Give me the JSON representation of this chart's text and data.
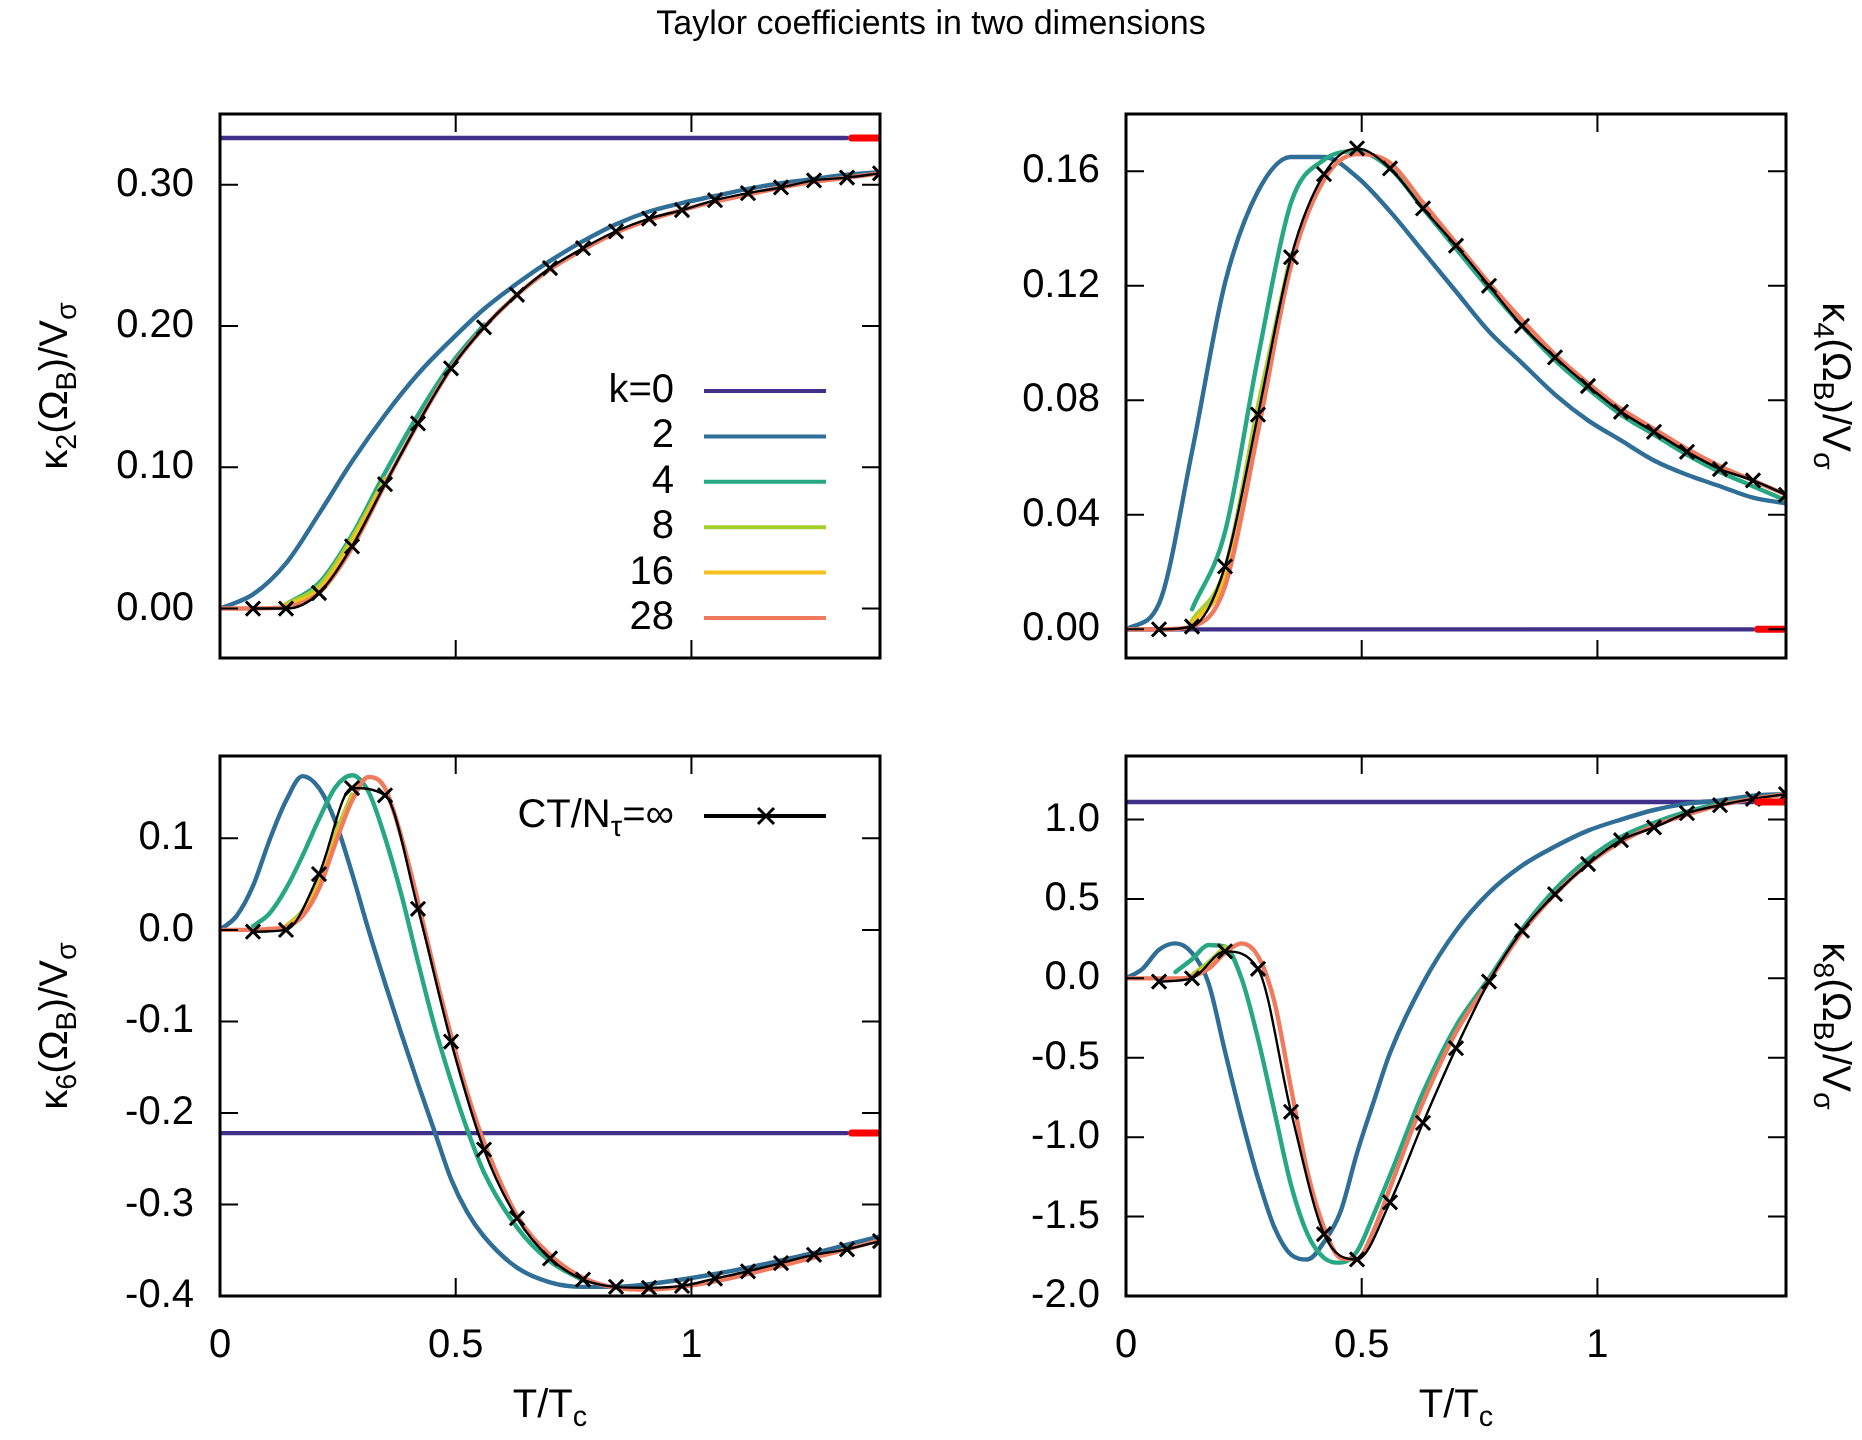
{
  "chart_data": [
    {
      "type": "line",
      "title": "Taylor coefficients in two dimensions",
      "ylabel": "κ$_{2}$(Ω$_{B}$)/V$_{σ}$",
      "legend": "bottom right",
      "tick_labels": "y",
      "xlim": [
        0,
        1.4
      ],
      "xticks": [
        0,
        0.5,
        1
      ],
      "ylim": [
        -0.035,
        0.35
      ],
      "yticks": [
        {
          "value": 0,
          "label": "0.00"
        },
        {
          "value": 0.1,
          "label": "0.10"
        },
        {
          "value": 0.2,
          "label": "0.20"
        },
        {
          "value": 0.3,
          "label": "0.30"
        }
      ],
      "x": [
        0,
        0.07,
        0.14,
        0.21,
        0.28,
        0.35,
        0.42,
        0.49,
        0.56,
        0.63,
        0.7,
        0.77,
        0.84,
        0.91,
        0.98,
        1.05,
        1.12,
        1.19,
        1.26,
        1.33,
        1.4
      ],
      "series": [
        {
          "name": "k=0",
          "color": "#40308a",
          "values": [
            0.333,
            0.333,
            0.333,
            0.333,
            0.333,
            0.333,
            0.333,
            0.333,
            0.333,
            0.333,
            0.333,
            0.333,
            0.333,
            0.333,
            0.333,
            0.333,
            0.333,
            0.333,
            0.333,
            0.333,
            null
          ]
        },
        {
          "name": "2",
          "color": "#2f6e96",
          "values": [
            0,
            0.01,
            0.032,
            0.067,
            0.104,
            0.137,
            0.166,
            0.19,
            0.212,
            0.23,
            0.246,
            0.26,
            0.272,
            0.281,
            0.287,
            0.292,
            0.297,
            0.301,
            0.304,
            0.307,
            0.309
          ]
        },
        {
          "name": "4",
          "color": "#26a882",
          "values": [
            null,
            null,
            0.003,
            0.018,
            0.052,
            0.096,
            0.137,
            0.173,
            0.201,
            null,
            null,
            null,
            null,
            null,
            null,
            null,
            null,
            null,
            null,
            null,
            null
          ]
        },
        {
          "name": "8",
          "color": "#a5cf2c",
          "values": [
            null,
            null,
            0.003,
            0.016,
            0.05,
            0.092,
            null,
            null,
            null,
            null,
            null,
            null,
            null,
            null,
            null,
            null,
            null,
            null,
            null,
            null,
            null
          ]
        },
        {
          "name": "16",
          "color": "#f7c11d",
          "values": [
            null,
            null,
            0.002,
            0.013,
            0.047,
            0.09,
            null,
            null,
            null,
            null,
            null,
            null,
            null,
            null,
            null,
            null,
            null,
            null,
            null,
            null,
            null
          ]
        },
        {
          "name": "28",
          "color": "#ef7a5e",
          "values": [
            0,
            0,
            0.001,
            0.011,
            0.043,
            0.088,
            0.131,
            0.17,
            0.199,
            0.222,
            0.24,
            0.254,
            0.266,
            0.275,
            0.282,
            0.288,
            0.293,
            0.298,
            0.302,
            0.305,
            0.308
          ]
        },
        {
          "color": "#000000",
          "marker": "cross",
          "x": [
            0.07,
            0.14,
            0.21,
            0.28,
            0.35,
            0.42,
            0.49,
            0.56,
            0.63,
            0.7,
            0.77,
            0.84,
            0.91,
            0.98,
            1.05,
            1.12,
            1.19,
            1.26,
            1.33,
            1.4
          ],
          "values": [
            0.0,
            0.0,
            0.011,
            0.044,
            0.088,
            0.131,
            0.17,
            0.199,
            0.222,
            0.241,
            0.255,
            0.267,
            0.276,
            0.282,
            0.289,
            0.294,
            0.298,
            0.303,
            0.305,
            0.308
          ]
        },
        {
          "color": "#ff0000",
          "x": [
            1.34,
            1.4
          ],
          "values": [
            0.333,
            0.333
          ]
        }
      ]
    },
    {
      "type": "line",
      "ylabel": "κ$_{4}$(Ω$_{B}$)/V$_{σ}$",
      "tick_labels": "y",
      "xlim": [
        0,
        1.4
      ],
      "xticks": [
        0,
        0.5,
        1
      ],
      "ylim": [
        -0.01,
        0.18
      ],
      "yticks": [
        {
          "value": 0,
          "label": "0.00"
        },
        {
          "value": 0.04,
          "label": "0.04"
        },
        {
          "value": 0.08,
          "label": "0.08"
        },
        {
          "value": 0.12,
          "label": "0.12"
        },
        {
          "value": 0.16,
          "label": "0.16"
        }
      ],
      "x": [
        0,
        0.07,
        0.14,
        0.21,
        0.28,
        0.35,
        0.42,
        0.49,
        0.56,
        0.63,
        0.7,
        0.77,
        0.84,
        0.91,
        0.98,
        1.05,
        1.12,
        1.19,
        1.26,
        1.33,
        1.4
      ],
      "series": [
        {
          "color": "#40308a",
          "values": [
            0,
            0,
            0,
            0,
            0,
            0,
            0,
            0,
            0,
            0,
            0,
            0,
            0,
            0,
            0,
            0,
            0,
            0,
            0,
            0,
            null
          ]
        },
        {
          "color": "#2f6e96",
          "values": [
            0,
            0.009,
            0.062,
            0.121,
            0.153,
            0.165,
            0.165,
            0.158,
            0.146,
            0.132,
            0.118,
            0.104,
            0.093,
            0.082,
            0.073,
            0.066,
            0.059,
            0.054,
            0.05,
            0.046,
            0.044
          ]
        },
        {
          "color": "#26a882",
          "values": [
            null,
            null,
            0.007,
            0.034,
            0.095,
            0.149,
            0.164,
            0.167,
            0.161,
            0.147,
            0.133,
            0.119,
            0.106,
            0.094,
            0.084,
            0.075,
            0.068,
            0.061,
            0.055,
            0.05,
            0.045
          ]
        },
        {
          "color": "#a5cf2c",
          "values": [
            null,
            null,
            0.003,
            0.021,
            0.078,
            0.131,
            null,
            null,
            null,
            null,
            null,
            null,
            null,
            null,
            null,
            null,
            null,
            null,
            null,
            null,
            null
          ]
        },
        {
          "color": "#f7c11d",
          "values": [
            null,
            null,
            0.002,
            0.018,
            0.074,
            0.129,
            null,
            null,
            null,
            null,
            null,
            null,
            null,
            null,
            null,
            null,
            null,
            null,
            null,
            null,
            null
          ]
        },
        {
          "color": "#ef7a5e",
          "values": [
            0,
            0,
            0.001,
            0.015,
            0.069,
            0.127,
            0.157,
            0.166,
            0.163,
            0.149,
            0.135,
            0.121,
            0.108,
            0.096,
            0.086,
            0.077,
            0.07,
            0.063,
            0.057,
            0.052,
            0.047
          ]
        },
        {
          "color": "#000000",
          "marker": "cross",
          "x": [
            0.07,
            0.14,
            0.21,
            0.28,
            0.35,
            0.42,
            0.49,
            0.56,
            0.63,
            0.7,
            0.77,
            0.84,
            0.91,
            0.98,
            1.05,
            1.12,
            1.19,
            1.26,
            1.33,
            1.4
          ],
          "values": [
            0.0,
            0.001,
            0.022,
            0.075,
            0.13,
            0.159,
            0.168,
            0.161,
            0.147,
            0.134,
            0.12,
            0.106,
            0.095,
            0.085,
            0.076,
            0.069,
            0.062,
            0.056,
            0.052,
            0.047
          ]
        },
        {
          "color": "#ff0000",
          "x": [
            1.34,
            1.4
          ],
          "values": [
            0,
            0
          ]
        }
      ]
    },
    {
      "type": "line",
      "ylabel": "κ$_{6}$(Ω$_{B}$)/V$_{σ}$",
      "xlabel": "T/T$_{c}$",
      "legend": "top right",
      "xlim": [
        0,
        1.4
      ],
      "xticks": [
        0,
        0.5,
        1
      ],
      "ylim": [
        -0.4,
        0.19
      ],
      "yticks": [
        {
          "value": -0.4,
          "label": "-0.4"
        },
        {
          "value": -0.3,
          "label": "-0.3"
        },
        {
          "value": -0.2,
          "label": "-0.2"
        },
        {
          "value": -0.1,
          "label": "-0.1"
        },
        {
          "value": 0,
          "label": "0.0"
        },
        {
          "value": 0.1,
          "label": "0.1"
        }
      ],
      "x": [
        0,
        0.035,
        0.07,
        0.105,
        0.14,
        0.175,
        0.21,
        0.245,
        0.28,
        0.315,
        0.35,
        0.385,
        0.42,
        0.455,
        0.49,
        0.525,
        0.56,
        0.63,
        0.7,
        0.77,
        0.84,
        0.91,
        0.98,
        1.05,
        1.12,
        1.19,
        1.26,
        1.33,
        1.4
      ],
      "series": [
        {
          "color": "#40308a",
          "values": [
            -0.222,
            -0.222,
            -0.222,
            -0.222,
            -0.222,
            -0.222,
            -0.222,
            -0.222,
            -0.222,
            -0.222,
            -0.222,
            -0.222,
            -0.222,
            -0.222,
            -0.222,
            -0.222,
            -0.222,
            -0.222,
            -0.222,
            -0.222,
            -0.222,
            -0.222,
            -0.222,
            -0.222,
            -0.222,
            -0.222,
            -0.222,
            -0.222,
            null
          ]
        },
        {
          "color": "#2f6e96",
          "values": [
            0,
            0.015,
            0.048,
            0.098,
            0.141,
            0.168,
            0.155,
            0.118,
            0.062,
            0.0,
            -0.058,
            -0.114,
            -0.168,
            -0.22,
            -0.272,
            -0.309,
            -0.335,
            -0.369,
            -0.385,
            -0.39,
            -0.39,
            -0.387,
            -0.382,
            -0.376,
            -0.369,
            -0.361,
            -0.353,
            -0.344,
            -0.335
          ]
        },
        {
          "color": "#26a882",
          "values": [
            null,
            null,
            0.004,
            0.018,
            0.045,
            0.081,
            0.121,
            0.156,
            0.169,
            0.151,
            0.101,
            0.038,
            -0.035,
            -0.105,
            -0.165,
            -0.219,
            -0.265,
            -0.325,
            -0.362,
            -0.383,
            null,
            null,
            null,
            null,
            null,
            null,
            null,
            null,
            null
          ]
        },
        {
          "color": "#a5cf2c",
          "values": [
            null,
            null,
            null,
            null,
            0.004,
            0.021,
            0.056,
            0.105,
            0.148,
            null,
            null,
            null,
            null,
            null,
            null,
            null,
            null,
            null,
            null,
            null,
            null,
            null,
            null,
            null,
            null,
            null,
            null,
            null,
            null
          ]
        },
        {
          "color": "#f7c11d",
          "values": [
            null,
            null,
            null,
            null,
            0.003,
            0.018,
            0.05,
            0.1,
            0.144,
            null,
            null,
            null,
            null,
            null,
            null,
            null,
            null,
            null,
            null,
            null,
            null,
            null,
            null,
            null,
            null,
            null,
            null,
            null,
            null
          ]
        },
        {
          "color": "#ef7a5e",
          "values": [
            0,
            0,
            0,
            0.001,
            0.003,
            0.015,
            0.045,
            0.095,
            0.141,
            0.167,
            0.155,
            0.101,
            0.031,
            -0.045,
            -0.115,
            -0.179,
            -0.232,
            -0.312,
            -0.355,
            -0.38,
            -0.391,
            -0.393,
            -0.39,
            -0.384,
            -0.376,
            -0.367,
            -0.358,
            -0.349,
            -0.339
          ]
        },
        {
          "name": "CT/N$_{τ}$=∞",
          "color": "#000000",
          "marker": "cross",
          "x": [
            0.07,
            0.14,
            0.21,
            0.28,
            0.35,
            0.42,
            0.49,
            0.56,
            0.63,
            0.7,
            0.77,
            0.84,
            0.91,
            0.98,
            1.05,
            1.12,
            1.19,
            1.26,
            1.33,
            1.4
          ],
          "values": [
            -0.002,
            0.0,
            0.061,
            0.155,
            0.147,
            0.023,
            -0.122,
            -0.24,
            -0.315,
            -0.359,
            -0.382,
            -0.39,
            -0.391,
            -0.389,
            -0.381,
            -0.373,
            -0.364,
            -0.355,
            -0.349,
            -0.34
          ]
        },
        {
          "color": "#ff0000",
          "x": [
            1.34,
            1.4
          ],
          "values": [
            -0.222,
            -0.222
          ]
        }
      ]
    },
    {
      "type": "line",
      "ylabel": "κ$_{8}$(Ω$_{B}$)/V$_{σ}$",
      "xlabel": "T/T$_{c}$",
      "xlim": [
        0,
        1.4
      ],
      "xticks": [
        0,
        0.5,
        1
      ],
      "ylim": [
        -2,
        1.4
      ],
      "yticks": [
        {
          "value": -2,
          "label": "-2.0"
        },
        {
          "value": -1.5,
          "label": "-1.5"
        },
        {
          "value": -1,
          "label": "-1.0"
        },
        {
          "value": -0.5,
          "label": "-0.5"
        },
        {
          "value": 0,
          "label": "0.0"
        },
        {
          "value": 0.5,
          "label": "0.5"
        },
        {
          "value": 1,
          "label": "1.0"
        }
      ],
      "x": [
        0,
        0.035,
        0.07,
        0.105,
        0.14,
        0.175,
        0.21,
        0.245,
        0.28,
        0.315,
        0.35,
        0.385,
        0.42,
        0.455,
        0.49,
        0.525,
        0.56,
        0.63,
        0.7,
        0.77,
        0.84,
        0.91,
        0.98,
        1.05,
        1.12,
        1.19,
        1.26,
        1.33,
        1.4
      ],
      "series": [
        {
          "color": "#40308a",
          "values": [
            1.11,
            1.11,
            1.11,
            1.11,
            1.11,
            1.11,
            1.11,
            1.11,
            1.11,
            1.11,
            1.11,
            1.11,
            1.11,
            1.11,
            1.11,
            1.11,
            1.11,
            1.11,
            1.11,
            1.11,
            1.11,
            1.11,
            1.11,
            1.11,
            1.11,
            1.11,
            1.11,
            1.11,
            null
          ]
        },
        {
          "color": "#2f6e96",
          "values": [
            0,
            0.06,
            0.18,
            0.22,
            0.16,
            -0.03,
            -0.46,
            -0.88,
            -1.26,
            -1.57,
            -1.74,
            -1.77,
            -1.66,
            -1.47,
            -1.1,
            -0.78,
            -0.47,
            -0.03,
            0.3,
            0.54,
            0.71,
            0.83,
            0.93,
            1.0,
            1.06,
            1.1,
            1.12,
            1.15,
            1.16
          ]
        },
        {
          "color": "#26a882",
          "values": [
            null,
            null,
            null,
            0.04,
            0.12,
            0.21,
            0.2,
            0,
            -0.38,
            -0.84,
            -1.3,
            -1.61,
            -1.76,
            -1.79,
            -1.72,
            -1.49,
            -1.24,
            -0.72,
            -0.3,
            0,
            0.31,
            0.56,
            0.75,
            0.89,
            0.98,
            1.05,
            1.1,
            1.13,
            1.16
          ]
        },
        {
          "color": "#a5cf2c",
          "values": [
            null,
            null,
            null,
            null,
            0.02,
            0.1,
            0.2,
            null,
            null,
            null,
            null,
            null,
            null,
            null,
            null,
            null,
            null,
            null,
            null,
            null,
            null,
            null,
            null,
            null,
            null,
            null,
            null,
            null,
            null
          ]
        },
        {
          "color": "#f7c11d",
          "values": [
            null,
            null,
            null,
            null,
            0.01,
            0.08,
            0.18,
            null,
            null,
            null,
            null,
            null,
            null,
            null,
            null,
            null,
            null,
            null,
            null,
            null,
            null,
            null,
            null,
            null,
            null,
            null,
            null,
            null,
            null
          ]
        },
        {
          "color": "#ef7a5e",
          "values": [
            0,
            0,
            0,
            0,
            0.01,
            0.06,
            0.16,
            0.22,
            0.14,
            -0.15,
            -0.69,
            -1.22,
            -1.57,
            -1.76,
            -1.77,
            -1.59,
            -1.32,
            -0.78,
            -0.34,
            -0.02,
            0.29,
            0.53,
            0.72,
            0.86,
            0.96,
            1.03,
            1.09,
            1.13,
            1.16
          ]
        },
        {
          "color": "#000000",
          "marker": "cross",
          "x": [
            0.07,
            0.14,
            0.21,
            0.28,
            0.35,
            0.42,
            0.49,
            0.56,
            0.63,
            0.7,
            0.77,
            0.84,
            0.91,
            0.98,
            1.05,
            1.12,
            1.19,
            1.26,
            1.33,
            1.4
          ],
          "values": [
            -0.02,
            0,
            0.17,
            0.06,
            -0.84,
            -1.61,
            -1.77,
            -1.41,
            -0.91,
            -0.44,
            -0.02,
            0.3,
            0.53,
            0.72,
            0.87,
            0.95,
            1.04,
            1.09,
            1.13,
            1.16
          ]
        },
        {
          "color": "#ff0000",
          "x": [
            1.34,
            1.4
          ],
          "values": [
            1.11,
            1.11
          ]
        }
      ]
    }
  ]
}
